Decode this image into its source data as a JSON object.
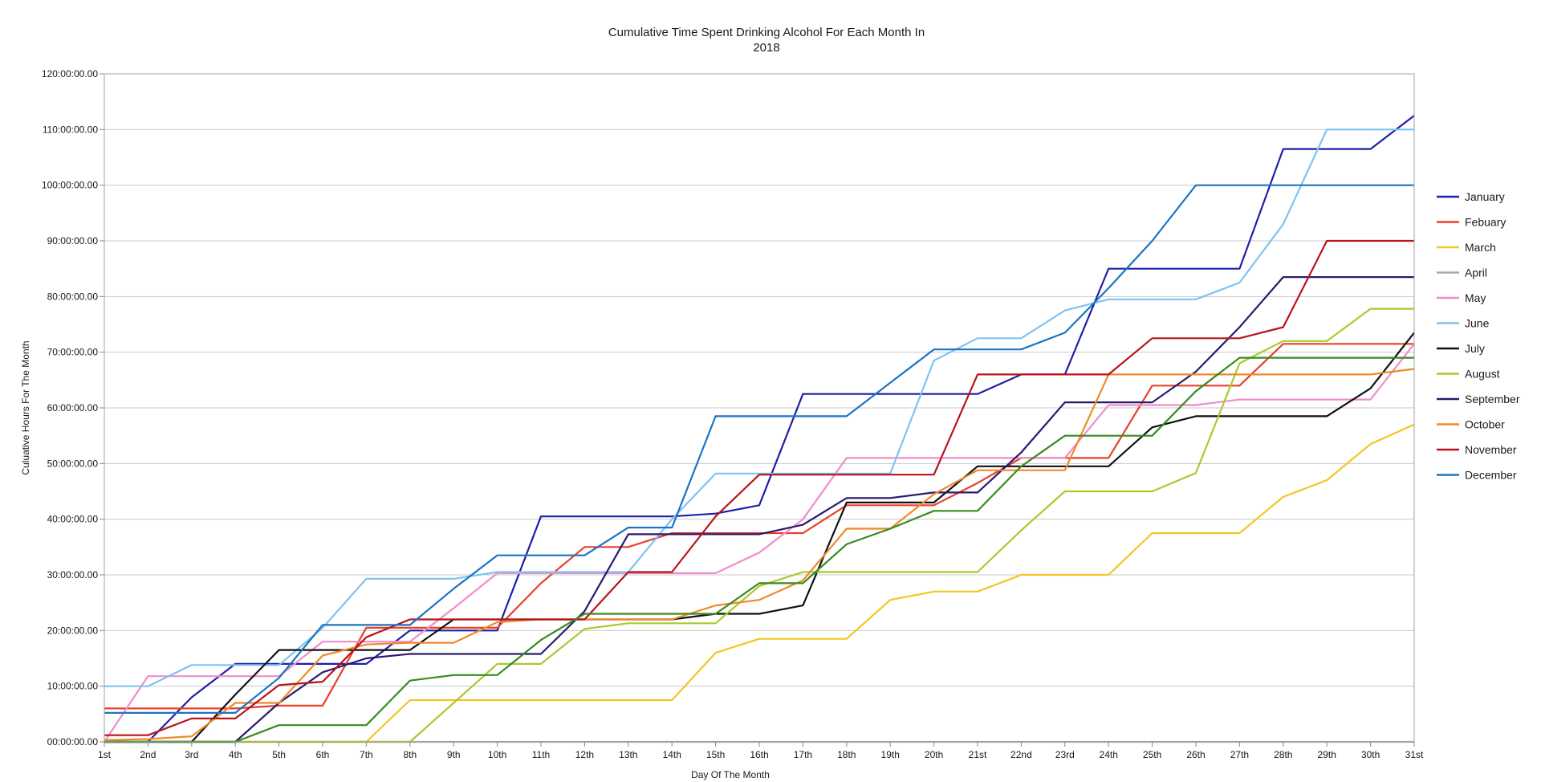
{
  "chart_data": {
    "type": "line",
    "title": [
      "Cumulative Time Spent Drinking Alcohol For Each Month In",
      "2018"
    ],
    "xlabel": "Day Of The Month",
    "ylabel": "Culuative Hours For The Month",
    "ylim": [
      0,
      120
    ],
    "yticks": [
      0,
      10,
      20,
      30,
      40,
      50,
      60,
      70,
      80,
      90,
      100,
      110,
      120
    ],
    "ytick_labels": [
      "00:00:00.00",
      "10:00:00.00",
      "20:00:00.00",
      "30:00:00.00",
      "40:00:00.00",
      "50:00:00.00",
      "60:00:00.00",
      "70:00:00.00",
      "80:00:00.00",
      "90:00:00.00",
      "100:00:00.00",
      "110:00:00.00",
      "120:00:00.00"
    ],
    "categories": [
      "1st",
      "2nd",
      "3rd",
      "4th",
      "5th",
      "6th",
      "7th",
      "8th",
      "9th",
      "10th",
      "11th",
      "12th",
      "13th",
      "14th",
      "15th",
      "16th",
      "17th",
      "18th",
      "19th",
      "20th",
      "21st",
      "22nd",
      "23rd",
      "24th",
      "25th",
      "26th",
      "27th",
      "28th",
      "29th",
      "30th",
      "31st"
    ],
    "grid": true,
    "legend_position": "right",
    "series": [
      {
        "name": "January",
        "color": "#1f1fa8",
        "values": [
          0,
          0,
          8,
          14,
          14,
          14,
          14,
          20,
          20,
          20,
          40.5,
          40.5,
          40.5,
          40.5,
          41,
          42.5,
          62.5,
          62.5,
          62.5,
          62.5,
          62.5,
          66,
          66,
          85,
          85,
          85,
          85,
          106.5,
          106.5,
          106.5,
          112.5
        ]
      },
      {
        "name": "Febuary",
        "color": "#e8402a",
        "values": [
          6,
          6,
          6,
          6,
          6.5,
          6.5,
          20.5,
          20.5,
          20.5,
          20.5,
          28.5,
          35,
          35,
          37.5,
          37.5,
          37.5,
          37.5,
          42.5,
          42.5,
          42.5,
          46.5,
          51,
          51,
          51,
          64,
          64,
          64,
          71.5,
          71.5,
          71.5,
          71.5
        ]
      },
      {
        "name": "March",
        "color": "#f3c623",
        "values": [
          0,
          0,
          0,
          0,
          0,
          0,
          0,
          7.5,
          7.5,
          7.5,
          7.5,
          7.5,
          7.5,
          7.5,
          16,
          18.5,
          18.5,
          18.5,
          25.5,
          27,
          27,
          30,
          30,
          30,
          37.5,
          37.5,
          37.5,
          44,
          47,
          53.5,
          57
        ]
      },
      {
        "name": "April",
        "color": "#a8a8a8",
        "values": [
          0,
          0,
          0,
          0,
          0,
          0,
          0,
          0,
          0,
          0,
          0,
          0,
          0,
          0,
          0,
          0,
          0,
          0,
          0,
          0,
          0,
          0,
          0,
          0,
          0,
          0,
          0,
          0,
          0,
          0,
          0
        ]
      },
      {
        "name": "May",
        "color": "#f08ccb",
        "values": [
          0,
          11.8,
          11.8,
          11.8,
          11.8,
          18,
          18,
          18,
          24,
          30.3,
          30.3,
          30.3,
          30.3,
          30.3,
          30.3,
          34,
          40,
          51,
          51,
          51,
          51,
          51,
          51,
          60.5,
          60.5,
          60.5,
          61.5,
          61.5,
          61.5,
          61.5,
          71.5
        ]
      },
      {
        "name": "June",
        "color": "#7ec3f2",
        "values": [
          10,
          10,
          13.8,
          13.8,
          13.8,
          20.5,
          29.3,
          29.3,
          29.3,
          30.5,
          30.5,
          30.5,
          30.5,
          40,
          48.2,
          48.2,
          48.2,
          48.2,
          48.2,
          68.5,
          72.5,
          72.5,
          77.5,
          79.5,
          79.5,
          79.5,
          82.5,
          93,
          110,
          110,
          110
        ]
      },
      {
        "name": "July",
        "color": "#111111",
        "values": [
          0,
          0,
          0,
          8.5,
          16.5,
          16.5,
          16.5,
          16.5,
          22,
          22,
          22,
          22,
          22,
          22,
          23,
          23,
          24.5,
          43,
          43,
          43,
          49.5,
          49.5,
          49.5,
          49.5,
          56.5,
          58.5,
          58.5,
          58.5,
          58.5,
          63.5,
          73.5
        ]
      },
      {
        "name": "August",
        "color": "#a9c92e",
        "values": [
          0,
          0,
          0,
          0,
          0,
          0,
          0,
          0,
          7,
          14,
          14,
          20.3,
          21.3,
          21.3,
          21.3,
          28,
          30.5,
          30.5,
          30.5,
          30.5,
          30.5,
          38,
          45,
          45,
          45,
          48.3,
          68,
          72,
          72,
          77.8,
          77.8
        ]
      },
      {
        "name": "September",
        "color": "#2a1a6e",
        "values": [
          0,
          0,
          0,
          0,
          7,
          12.5,
          15,
          15.8,
          15.8,
          15.8,
          15.8,
          23.5,
          37.3,
          37.3,
          37.3,
          37.3,
          39,
          43.8,
          43.8,
          44.8,
          44.8,
          52,
          61,
          61,
          61,
          66.5,
          74.5,
          83.5,
          83.5,
          83.5,
          83.5
        ]
      },
      {
        "name": "October",
        "color": "#f0892a",
        "values": [
          0.3,
          0.5,
          1,
          7,
          7,
          15.5,
          17.5,
          17.8,
          17.8,
          21.5,
          22,
          22,
          22,
          22,
          24.5,
          25.5,
          29,
          38.3,
          38.3,
          44.5,
          48.8,
          48.8,
          48.8,
          66,
          66,
          66,
          66,
          66,
          66,
          66,
          67
        ]
      },
      {
        "name": "November",
        "color": "#b8141a",
        "values": [
          1.2,
          1.2,
          4.2,
          4.2,
          10.2,
          10.8,
          18.8,
          22,
          22,
          22,
          22,
          22,
          30.5,
          30.5,
          40.5,
          48,
          48,
          48,
          48,
          48,
          66,
          66,
          66,
          66,
          72.5,
          72.5,
          72.5,
          74.5,
          90,
          90,
          90
        ]
      },
      {
        "name": "December",
        "color": "#1a74c4",
        "values": [
          5.2,
          5.2,
          5.2,
          5.2,
          11.5,
          21,
          21,
          21,
          27.5,
          33.5,
          33.5,
          33.5,
          38.5,
          38.5,
          58.5,
          58.5,
          58.5,
          58.5,
          64.5,
          70.5,
          70.5,
          70.5,
          73.5,
          81.5,
          90,
          100,
          100,
          100,
          100,
          100,
          100
        ]
      }
    ],
    "extra_series": [
      {
        "name": "",
        "color": "#3a8a1e",
        "values": [
          0,
          0,
          0,
          0,
          3,
          3,
          3,
          11,
          12,
          12,
          18.3,
          23,
          23,
          23,
          23,
          28.5,
          28.5,
          35.5,
          38.3,
          41.5,
          41.5,
          49.5,
          55,
          55,
          55,
          63,
          69,
          69,
          69,
          69,
          69
        ]
      }
    ]
  }
}
